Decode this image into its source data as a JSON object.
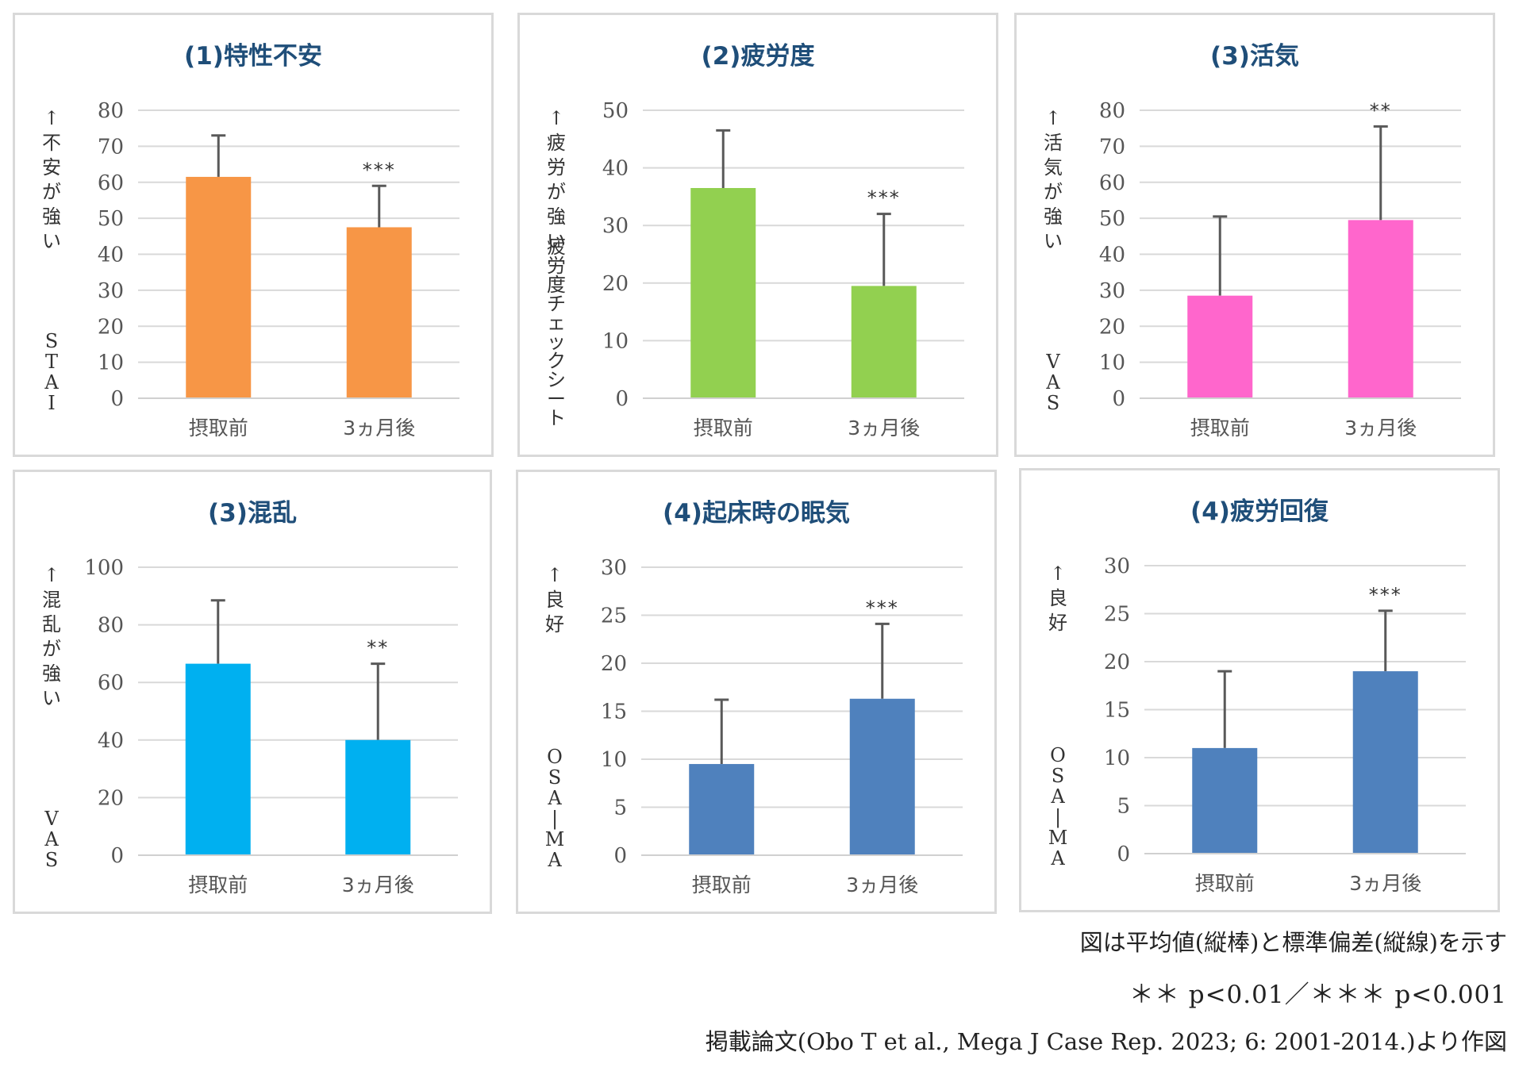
{
  "chart_data": [
    {
      "type": "bar",
      "title": "(1)特性不安",
      "ylabel_top": "↑不安が強い",
      "ylabel_bottom": "STAI",
      "categories": [
        "摂取前",
        "3ヵ月後"
      ],
      "values": [
        61.5,
        47.5
      ],
      "error": [
        73,
        59
      ],
      "significance": [
        "",
        "***"
      ],
      "ylim": [
        0,
        80
      ],
      "yticks": [
        0,
        10,
        20,
        30,
        40,
        50,
        60,
        70,
        80
      ],
      "color": "#f79646"
    },
    {
      "type": "bar",
      "title": "(2)疲労度",
      "ylabel_top": "↑疲労が強い",
      "ylabel_bottom": "疲労度チェックシート",
      "categories": [
        "摂取前",
        "3ヵ月後"
      ],
      "values": [
        36.5,
        19.5
      ],
      "error": [
        46.5,
        32
      ],
      "significance": [
        "",
        "***"
      ],
      "ylim": [
        0,
        50
      ],
      "yticks": [
        0,
        10,
        20,
        30,
        40,
        50
      ],
      "color": "#92d050"
    },
    {
      "type": "bar",
      "title": "(3)活気",
      "ylabel_top": "↑活気が強い",
      "ylabel_bottom": "VAS",
      "categories": [
        "摂取前",
        "3ヵ月後"
      ],
      "values": [
        28.5,
        49.5
      ],
      "error": [
        50.5,
        75.5
      ],
      "significance": [
        "",
        "**"
      ],
      "ylim": [
        0,
        80
      ],
      "yticks": [
        0,
        10,
        20,
        30,
        40,
        50,
        60,
        70,
        80
      ],
      "color": "#ff66cc"
    },
    {
      "type": "bar",
      "title": "(3)混乱",
      "ylabel_top": "↑混乱が強い",
      "ylabel_bottom": "VAS",
      "categories": [
        "摂取前",
        "3ヵ月後"
      ],
      "values": [
        66.5,
        40
      ],
      "error": [
        88.5,
        66.5
      ],
      "significance": [
        "",
        "**"
      ],
      "ylim": [
        0,
        100
      ],
      "yticks": [
        0,
        20,
        40,
        60,
        80,
        100
      ],
      "color": "#00b0f0"
    },
    {
      "type": "bar",
      "title": "(4)起床時の眠気",
      "ylabel_top": "↑良好",
      "ylabel_bottom": "OSA-MA",
      "categories": [
        "摂取前",
        "3ヵ月後"
      ],
      "values": [
        9.5,
        16.3
      ],
      "error": [
        16.2,
        24.1
      ],
      "significance": [
        "",
        "***"
      ],
      "ylim": [
        0,
        30
      ],
      "yticks": [
        0,
        5,
        10,
        15,
        20,
        25,
        30
      ],
      "color": "#4f81bd"
    },
    {
      "type": "bar",
      "title": "(4)疲労回復",
      "ylabel_top": "↑良好",
      "ylabel_bottom": "OSA-MA",
      "categories": [
        "摂取前",
        "3ヵ月後"
      ],
      "values": [
        11,
        19
      ],
      "error": [
        19,
        25.3
      ],
      "significance": [
        "",
        "***"
      ],
      "ylim": [
        0,
        30
      ],
      "yticks": [
        0,
        5,
        10,
        15,
        20,
        25,
        30
      ],
      "color": "#4f81bd"
    }
  ],
  "notes": {
    "mean_sd": "図は平均値(縦棒)と標準偏差(縦線)を示す",
    "pvalues": "＊＊ p<0.01／＊＊＊ p<0.001",
    "source": "掲載論文(Obo T et al., Mega J Case Rep. 2023; 6: 2001-2014.)より作図"
  }
}
